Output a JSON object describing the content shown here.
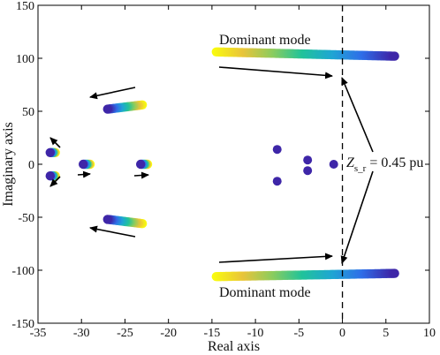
{
  "chart_data": {
    "type": "scatter",
    "title": "",
    "xlabel": "Real axis",
    "ylabel": "Imaginary axis",
    "xlim": [
      -35,
      10
    ],
    "ylim": [
      -150,
      150
    ],
    "xticks": [
      "-35",
      "-30",
      "-25",
      "-20",
      "-15",
      "-10",
      "-5",
      "0",
      "5",
      "10"
    ],
    "yticks": [
      "150",
      "100",
      "50",
      "0",
      "-50",
      "-100",
      "-150"
    ],
    "grid": false,
    "colormap": [
      "#3e26a8",
      "#2f6ee8",
      "#1fa6d3",
      "#20c39a",
      "#8ccc5e",
      "#e9c43a",
      "#f9fb0e"
    ],
    "trajectories": [
      {
        "name": "dominant-upper",
        "x_start": -14.5,
        "y_start": 106,
        "x_end": 6,
        "y_end": 102
      },
      {
        "name": "dominant-lower",
        "x_start": -14.5,
        "y_start": -106,
        "x_end": 6,
        "y_end": -103
      },
      {
        "name": "mode-upper",
        "x_start": -23,
        "y_start": 56,
        "x_end": -27,
        "y_end": 52
      },
      {
        "name": "mode-lower",
        "x_start": -23,
        "y_start": -56,
        "x_end": -27,
        "y_end": -52
      },
      {
        "name": "mode-high-pos",
        "x_start": -33,
        "y_start": 11,
        "x_end": -33.6,
        "y_end": 11
      },
      {
        "name": "mode-high-neg",
        "x_start": -33,
        "y_start": -11,
        "x_end": -33.6,
        "y_end": -11
      },
      {
        "name": "mode-30",
        "x_start": -29,
        "y_start": 0,
        "x_end": -29.8,
        "y_end": 0
      },
      {
        "name": "mode-22",
        "x_start": -22.4,
        "y_start": 0,
        "x_end": -23.2,
        "y_end": 0
      }
    ],
    "fixed_points": [
      {
        "x": -7.5,
        "y": 14
      },
      {
        "x": -7.5,
        "y": -16
      },
      {
        "x": -4,
        "y": 4
      },
      {
        "x": -4,
        "y": -6
      },
      {
        "x": -1,
        "y": 0
      }
    ],
    "vertical_line_x": 0,
    "annotations": {
      "dominant_upper": "Dominant mode",
      "dominant_lower": "Dominant mode",
      "z_symbol": "Z",
      "z_subscript": "s_r",
      "z_value": " = 0.45 pu"
    }
  }
}
